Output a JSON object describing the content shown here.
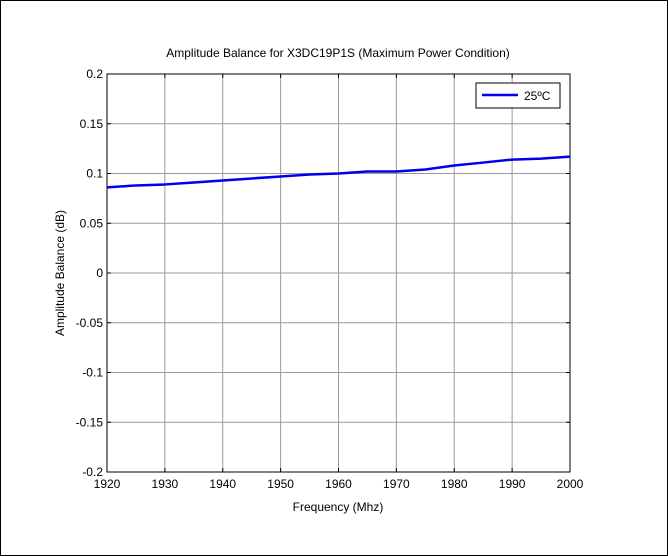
{
  "chart_data": {
    "type": "line",
    "title": "Amplitude Balance for X3DC19P1S (Maximum Power Condition)",
    "xlabel": "Frequency (Mhz)",
    "ylabel": "Amplitude Balance (dB)",
    "xlim": [
      1920,
      2000
    ],
    "ylim": [
      -0.2,
      0.2
    ],
    "xticks": [
      1920,
      1930,
      1940,
      1950,
      1960,
      1970,
      1980,
      1990,
      2000
    ],
    "yticks": [
      -0.2,
      -0.15,
      -0.1,
      -0.05,
      0,
      0.05,
      0.1,
      0.15,
      0.2
    ],
    "xtick_labels": [
      "1920",
      "1930",
      "1940",
      "1950",
      "1960",
      "1970",
      "1980",
      "1990",
      "2000"
    ],
    "ytick_labels": [
      "-0.2",
      "-0.15",
      "-0.1",
      "-0.05",
      "0",
      "0.05",
      "0.1",
      "0.15",
      "0.2"
    ],
    "grid": true,
    "legend_position": "top-right",
    "series": [
      {
        "name": "25ºC",
        "color": "#0000ee",
        "x": [
          1920,
          1925,
          1930,
          1935,
          1940,
          1945,
          1950,
          1955,
          1960,
          1965,
          1970,
          1975,
          1980,
          1985,
          1990,
          1995,
          2000
        ],
        "y": [
          0.086,
          0.088,
          0.089,
          0.091,
          0.093,
          0.095,
          0.097,
          0.099,
          0.1,
          0.102,
          0.102,
          0.104,
          0.108,
          0.111,
          0.114,
          0.115,
          0.117
        ]
      }
    ]
  }
}
